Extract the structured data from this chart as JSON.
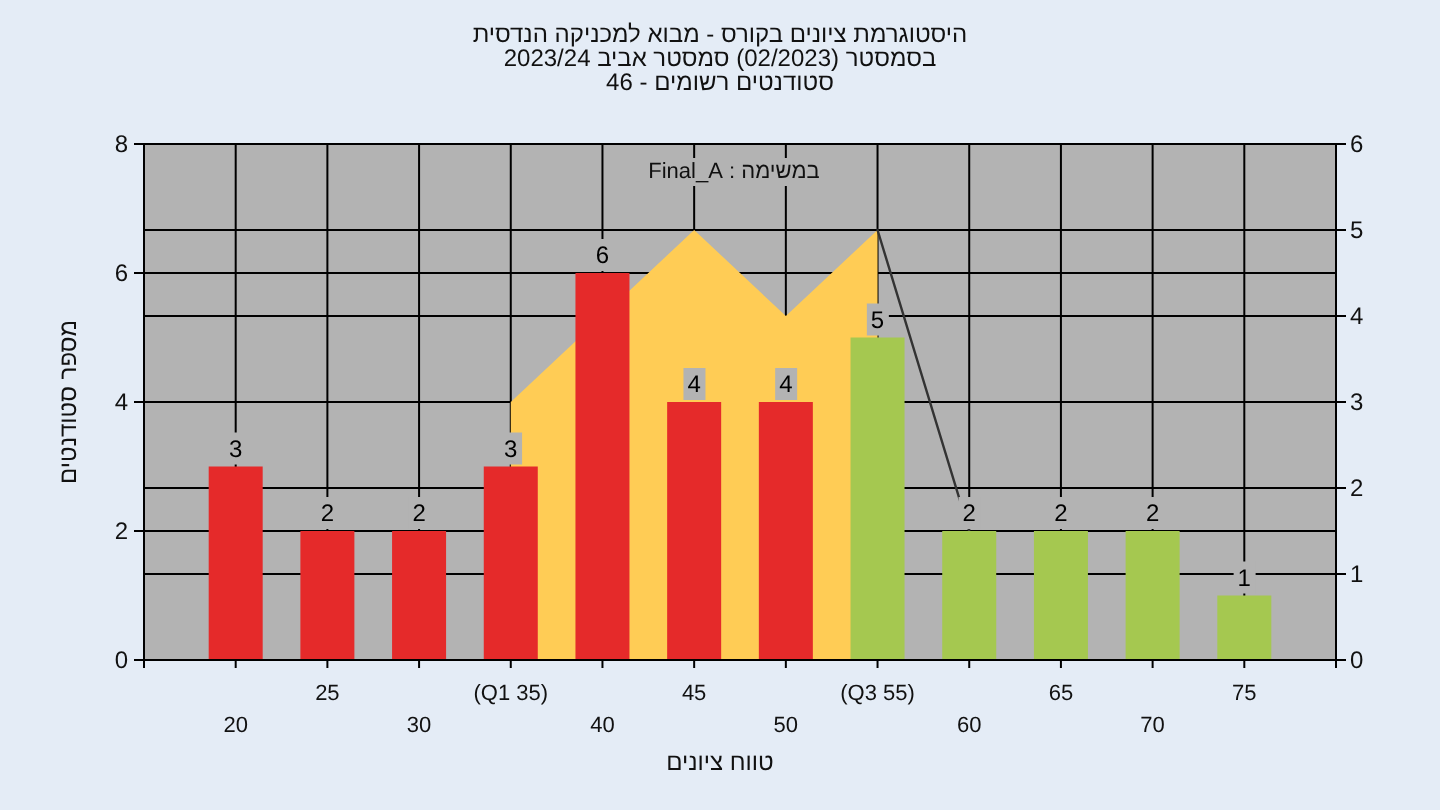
{
  "chart_data": {
    "type": "bar",
    "title": "היסטוגרמת ציונים בקורס - מבוא למכניקה הנדסית",
    "subtitle": "בסמסטר  (02/2023)  סמסטר אביב 2023/24",
    "annotations": [
      "סטודנטים רשומים - 46",
      "במשימה : Final_A"
    ],
    "xlabel": "טווח ציונים",
    "ylabel": "מספר סטודנטים",
    "categories": [
      "20",
      "25",
      "30",
      "(Q1 35)",
      "40",
      "45",
      "50",
      "(Q3 55)",
      "60",
      "65",
      "70",
      "75"
    ],
    "series": [
      {
        "type": "area",
        "axis": "y2",
        "color": "#ffcc55",
        "values": [
          null,
          null,
          null,
          3,
          null,
          5,
          4,
          5,
          null,
          null,
          null,
          null
        ]
      },
      {
        "type": "line",
        "axis": "y2",
        "color": "#333333",
        "values": [
          null,
          null,
          null,
          null,
          null,
          null,
          null,
          5,
          1.5,
          null,
          null,
          null
        ]
      },
      {
        "values": [
          3,
          2,
          2,
          3,
          6,
          4,
          4,
          5,
          2,
          2,
          2,
          1
        ],
        "value_labels": [
          "3",
          "2",
          "2",
          "3",
          "6",
          "4",
          "4",
          "5",
          "2",
          "2",
          "2",
          "1"
        ],
        "colors": [
          "#e52a2a",
          "#e52a2a",
          "#e52a2a",
          "#e52a2a",
          "#e52a2a",
          "#e52a2a",
          "#e52a2a",
          "#a5c850",
          "#a5c850",
          "#a5c850",
          "#a5c850",
          "#a5c850"
        ]
      }
    ],
    "ylim": [
      0,
      8
    ],
    "yticks": [
      0,
      2,
      4,
      6,
      8
    ],
    "y2lim": [
      0,
      6
    ],
    "y2ticks": [
      0,
      1,
      2,
      3,
      4,
      5,
      6
    ],
    "grid": true
  }
}
